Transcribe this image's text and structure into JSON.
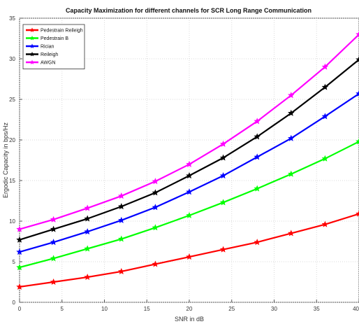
{
  "chart_data": {
    "type": "line",
    "title": "Capacity Maximization for different channels for SCR Long Range Communication",
    "xlabel": "SNR in dB",
    "ylabel": "Ergodic Capacity in bps/Hz",
    "xlim": [
      0,
      40
    ],
    "ylim": [
      0,
      35
    ],
    "xticks": [
      "0",
      "5",
      "10",
      "15",
      "20",
      "25",
      "30",
      "35",
      "40"
    ],
    "yticks": [
      "0",
      "5",
      "10",
      "15",
      "20",
      "25",
      "30",
      "35"
    ],
    "grid": true,
    "legend_position": "top-left",
    "x": [
      0,
      4,
      8,
      12,
      16,
      20,
      24,
      28,
      32,
      36,
      40
    ],
    "series": [
      {
        "name": "Pedestrain Reileigh",
        "color": "#ff0000",
        "marker": "star",
        "values": [
          1.9,
          2.5,
          3.1,
          3.8,
          4.7,
          5.6,
          6.5,
          7.4,
          8.5,
          9.6,
          10.9
        ]
      },
      {
        "name": "Pedestrain B",
        "color": "#00ff00",
        "marker": "star",
        "values": [
          4.3,
          5.4,
          6.6,
          7.8,
          9.2,
          10.7,
          12.3,
          14.0,
          15.8,
          17.7,
          19.8
        ]
      },
      {
        "name": "Rician",
        "color": "#0000ff",
        "marker": "star",
        "values": [
          6.2,
          7.4,
          8.7,
          10.1,
          11.7,
          13.6,
          15.6,
          17.9,
          20.2,
          22.9,
          25.7
        ]
      },
      {
        "name": "Reileigh",
        "color": "#000000",
        "marker": "star",
        "values": [
          7.7,
          9.0,
          10.3,
          11.8,
          13.5,
          15.6,
          17.8,
          20.4,
          23.3,
          26.5,
          29.9
        ]
      },
      {
        "name": "AWGN",
        "color": "#ff00ff",
        "marker": "star",
        "values": [
          9.0,
          10.2,
          11.6,
          13.1,
          14.9,
          17.0,
          19.5,
          22.3,
          25.5,
          29.0,
          33.0
        ]
      }
    ]
  }
}
